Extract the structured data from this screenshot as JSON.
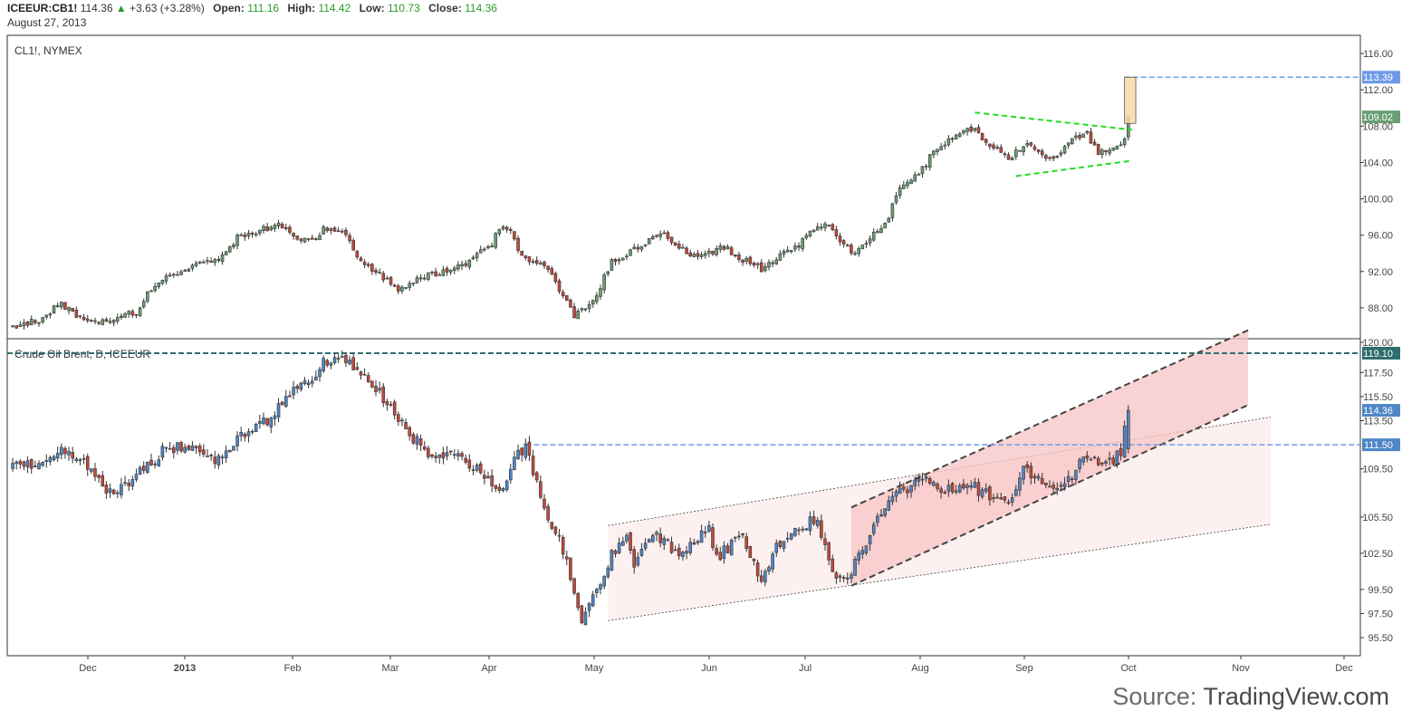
{
  "header": {
    "symbol": "ICEEUR:CB1!",
    "last": "114.36",
    "change_arrow": "▲",
    "change": "+3.63 (+3.28%)",
    "open_label": "Open:",
    "open": "111.16",
    "high_label": "High:",
    "high": "114.42",
    "low_label": "Low:",
    "low": "110.73",
    "close_label": "Close:",
    "close": "114.36",
    "date": "August 27, 2013"
  },
  "source": {
    "prefix": "Source: ",
    "brand": "TradingView.com"
  },
  "colors": {
    "up_top": "#6a9f74",
    "down": "#c2493a",
    "up_bottom": "#4f86c6",
    "trendline_green": "#22dd22",
    "hline_blue": "#6f9ae8",
    "hline_teal": "#2e6e6e",
    "channel_fill": "#f7c4c4",
    "channel_fill_light": "#fdeeee"
  },
  "chart_data": [
    {
      "type": "candlestick",
      "title": "CL1!, NYMEX",
      "x_ticks": [
        "Dec",
        "2013",
        "Feb",
        "Mar",
        "Apr",
        "May",
        "Jun",
        "Jul",
        "Aug",
        "Sep",
        "Oct",
        "Nov",
        "Dec"
      ],
      "y_ticks": [
        "116.00",
        "112.00",
        "108.00",
        "104.00",
        "100.00",
        "96.00",
        "92.00",
        "88.00"
      ],
      "ylim": [
        84.6,
        118.0
      ],
      "price_labels": [
        {
          "label": "113.39",
          "value": 113.39,
          "color": "#6f9ae8"
        },
        {
          "label": "109.02",
          "value": 109.02,
          "color": "#6a9f74"
        }
      ],
      "close_path": [
        [
          0,
          86.0
        ],
        [
          8,
          86.7
        ],
        [
          12,
          88.5
        ],
        [
          16,
          87.5
        ],
        [
          20,
          86.3
        ],
        [
          25,
          86.6
        ],
        [
          33,
          87.5
        ],
        [
          37,
          90.2
        ],
        [
          45,
          92.3
        ],
        [
          50,
          93.0
        ],
        [
          55,
          93.5
        ],
        [
          57,
          94.5
        ],
        [
          60,
          95.7
        ],
        [
          68,
          96.8
        ],
        [
          71,
          97.1
        ],
        [
          75,
          95.8
        ],
        [
          81,
          95.6
        ],
        [
          83,
          97.0
        ],
        [
          88,
          96.3
        ],
        [
          94,
          92.5
        ],
        [
          98,
          91.7
        ],
        [
          103,
          90.2
        ],
        [
          110,
          91.5
        ],
        [
          118,
          92.2
        ],
        [
          123,
          93.5
        ],
        [
          128,
          95.1
        ],
        [
          130,
          96.6
        ],
        [
          132,
          97.0
        ],
        [
          136,
          93.5
        ],
        [
          140,
          93.2
        ],
        [
          143,
          92.0
        ],
        [
          147,
          89.4
        ],
        [
          150,
          87.2
        ],
        [
          153,
          88.0
        ],
        [
          156,
          89.5
        ],
        [
          158,
          91.5
        ],
        [
          160,
          93.2
        ],
        [
          166,
          94.5
        ],
        [
          170,
          95.5
        ],
        [
          174,
          96.2
        ],
        [
          178,
          94.5
        ],
        [
          182,
          93.8
        ],
        [
          186,
          94.0
        ],
        [
          190,
          94.8
        ],
        [
          194,
          93.5
        ],
        [
          198,
          93.0
        ],
        [
          200,
          92.0
        ],
        [
          204,
          93.5
        ],
        [
          210,
          95.0
        ],
        [
          214,
          96.5
        ],
        [
          218,
          97.0
        ],
        [
          222,
          95.0
        ],
        [
          225,
          94.0
        ],
        [
          228,
          95.0
        ],
        [
          234,
          98.0
        ],
        [
          236,
          100.5
        ],
        [
          240,
          102.0
        ],
        [
          245,
          104.5
        ],
        [
          248,
          106.0
        ],
        [
          255,
          107.5
        ],
        [
          257,
          107.8
        ],
        [
          260,
          106.3
        ],
        [
          263,
          105.3
        ],
        [
          266,
          104.4
        ],
        [
          270,
          106.0
        ],
        [
          273,
          105.3
        ],
        [
          276,
          104.2
        ],
        [
          279,
          104.8
        ],
        [
          282,
          106.0
        ],
        [
          285,
          107.0
        ],
        [
          287,
          107.3
        ],
        [
          290,
          104.8
        ],
        [
          294,
          105.6
        ],
        [
          297,
          106.5
        ],
        [
          298,
          109.0
        ]
      ],
      "annotations": [
        {
          "type": "trendline",
          "from": [
            257,
            109.5
          ],
          "to": [
            299,
            107.6
          ]
        },
        {
          "type": "trendline",
          "from": [
            268,
            102.5
          ],
          "to": [
            299,
            104.2
          ]
        },
        {
          "type": "hline",
          "value": 113.39,
          "from": 297
        },
        {
          "type": "box",
          "x": [
            297,
            300
          ],
          "y": [
            108.3,
            113.39
          ]
        }
      ]
    },
    {
      "type": "candlestick",
      "title": "Crude Oil Brent, D, ICEEUR",
      "y_ticks": [
        "120.00",
        "117.50",
        "115.50",
        "113.50",
        "109.50",
        "105.50",
        "102.50",
        "99.50",
        "97.50",
        "95.50"
      ],
      "ylim": [
        94.0,
        120.3
      ],
      "price_labels": [
        {
          "label": "119.10",
          "value": 119.1,
          "color": "#2e6e6e"
        },
        {
          "label": "114.36",
          "value": 114.36,
          "color": "#4f86c6"
        },
        {
          "label": "111.50",
          "value": 111.5,
          "color": "#4f86c6"
        }
      ],
      "close_path": [
        [
          0,
          109.5
        ],
        [
          8,
          110.3
        ],
        [
          12,
          111.0
        ],
        [
          16,
          110.8
        ],
        [
          20,
          109.8
        ],
        [
          25,
          107.4
        ],
        [
          29,
          107.8
        ],
        [
          33,
          109.2
        ],
        [
          37,
          110.0
        ],
        [
          41,
          111.3
        ],
        [
          45,
          111.2
        ],
        [
          50,
          111.0
        ],
        [
          54,
          110.0
        ],
        [
          57,
          111.0
        ],
        [
          60,
          112.0
        ],
        [
          68,
          113.5
        ],
        [
          72,
          114.8
        ],
        [
          76,
          116.2
        ],
        [
          80,
          117.2
        ],
        [
          82,
          118.0
        ],
        [
          84,
          118.5
        ],
        [
          86,
          119.0
        ],
        [
          90,
          118.2
        ],
        [
          94,
          117.3
        ],
        [
          98,
          115.8
        ],
        [
          102,
          114.0
        ],
        [
          106,
          112.5
        ],
        [
          110,
          111.0
        ],
        [
          114,
          110.4
        ],
        [
          118,
          110.9
        ],
        [
          122,
          109.8
        ],
        [
          126,
          108.9
        ],
        [
          130,
          108.0
        ],
        [
          132,
          108.5
        ],
        [
          134,
          110.5
        ],
        [
          137,
          111.2
        ],
        [
          139,
          109.5
        ],
        [
          142,
          106.0
        ],
        [
          145,
          104.5
        ],
        [
          148,
          102.0
        ],
        [
          150,
          99.2
        ],
        [
          152,
          97.0
        ],
        [
          156,
          99.5
        ],
        [
          160,
          102.5
        ],
        [
          164,
          104.0
        ],
        [
          166,
          101.0
        ],
        [
          170,
          104.0
        ],
        [
          174,
          103.5
        ],
        [
          178,
          102.2
        ],
        [
          182,
          103.5
        ],
        [
          186,
          104.5
        ],
        [
          188,
          102.0
        ],
        [
          191,
          103.0
        ],
        [
          195,
          104.2
        ],
        [
          197,
          102.0
        ],
        [
          200,
          100.5
        ],
        [
          204,
          103.0
        ],
        [
          208,
          104.0
        ],
        [
          212,
          105.0
        ],
        [
          215,
          105.5
        ],
        [
          217,
          103.0
        ],
        [
          220,
          100.0
        ],
        [
          223,
          100.5
        ],
        [
          226,
          102.5
        ],
        [
          229,
          104.0
        ],
        [
          232,
          106.0
        ],
        [
          236,
          107.5
        ],
        [
          240,
          108.0
        ],
        [
          244,
          108.5
        ],
        [
          248,
          108.0
        ],
        [
          252,
          107.6
        ],
        [
          256,
          108.2
        ],
        [
          259,
          107.5
        ],
        [
          263,
          107.2
        ],
        [
          267,
          107.0
        ],
        [
          270,
          109.5
        ],
        [
          274,
          108.6
        ],
        [
          278,
          107.4
        ],
        [
          281,
          108.2
        ],
        [
          284,
          109.5
        ],
        [
          287,
          110.4
        ],
        [
          290,
          109.8
        ],
        [
          293,
          110.2
        ],
        [
          296,
          110.8
        ],
        [
          298,
          114.36
        ]
      ],
      "annotations": [
        {
          "type": "hline",
          "value": 119.1
        },
        {
          "type": "hline",
          "value": 111.5,
          "from": 137
        },
        {
          "type": "channel",
          "from_x": 159,
          "to_x": 336,
          "lower": [
            96.9,
            104.9
          ],
          "upper": [
            104.8,
            113.8
          ],
          "tone": "light"
        },
        {
          "type": "channel",
          "from_x": 224,
          "to_x": 330,
          "lower": [
            99.8,
            114.8
          ],
          "upper": [
            106.3,
            121.0
          ],
          "tone": "strong"
        }
      ]
    }
  ]
}
